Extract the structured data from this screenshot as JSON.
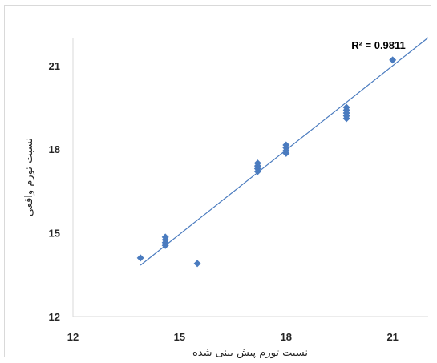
{
  "chart_data": {
    "type": "scatter",
    "title": "",
    "xlabel": "نسبت تورم پیش بینی شده",
    "ylabel": "نسبت تورم واقعی",
    "xlim": [
      12,
      22
    ],
    "ylim": [
      12,
      22
    ],
    "x_ticks": [
      "12",
      "15",
      "18",
      "21"
    ],
    "y_ticks": [
      "12",
      "15",
      "18",
      "21"
    ],
    "grid": false,
    "legend": "none",
    "points": [
      {
        "x": 13.9,
        "y": 14.1
      },
      {
        "x": 14.6,
        "y": 14.55
      },
      {
        "x": 14.6,
        "y": 14.65
      },
      {
        "x": 14.6,
        "y": 14.75
      },
      {
        "x": 14.6,
        "y": 14.85
      },
      {
        "x": 15.5,
        "y": 13.9
      },
      {
        "x": 17.2,
        "y": 17.2
      },
      {
        "x": 17.2,
        "y": 17.3
      },
      {
        "x": 17.2,
        "y": 17.4
      },
      {
        "x": 17.2,
        "y": 17.5
      },
      {
        "x": 18.0,
        "y": 17.85
      },
      {
        "x": 18.0,
        "y": 17.95
      },
      {
        "x": 18.0,
        "y": 18.05
      },
      {
        "x": 18.0,
        "y": 18.15
      },
      {
        "x": 19.7,
        "y": 19.1
      },
      {
        "x": 19.7,
        "y": 19.2
      },
      {
        "x": 19.7,
        "y": 19.3
      },
      {
        "x": 19.7,
        "y": 19.4
      },
      {
        "x": 19.7,
        "y": 19.5
      },
      {
        "x": 21.0,
        "y": 21.2
      }
    ],
    "trendline": {
      "x": [
        13.9,
        22.0
      ],
      "y": [
        13.84,
        22.0
      ]
    },
    "marker_color": "#4a7bbf",
    "line_color": "#4a7bbf",
    "annotation": {
      "text": "R² = 0.9811",
      "x": 20.6,
      "y": 21.6
    }
  }
}
